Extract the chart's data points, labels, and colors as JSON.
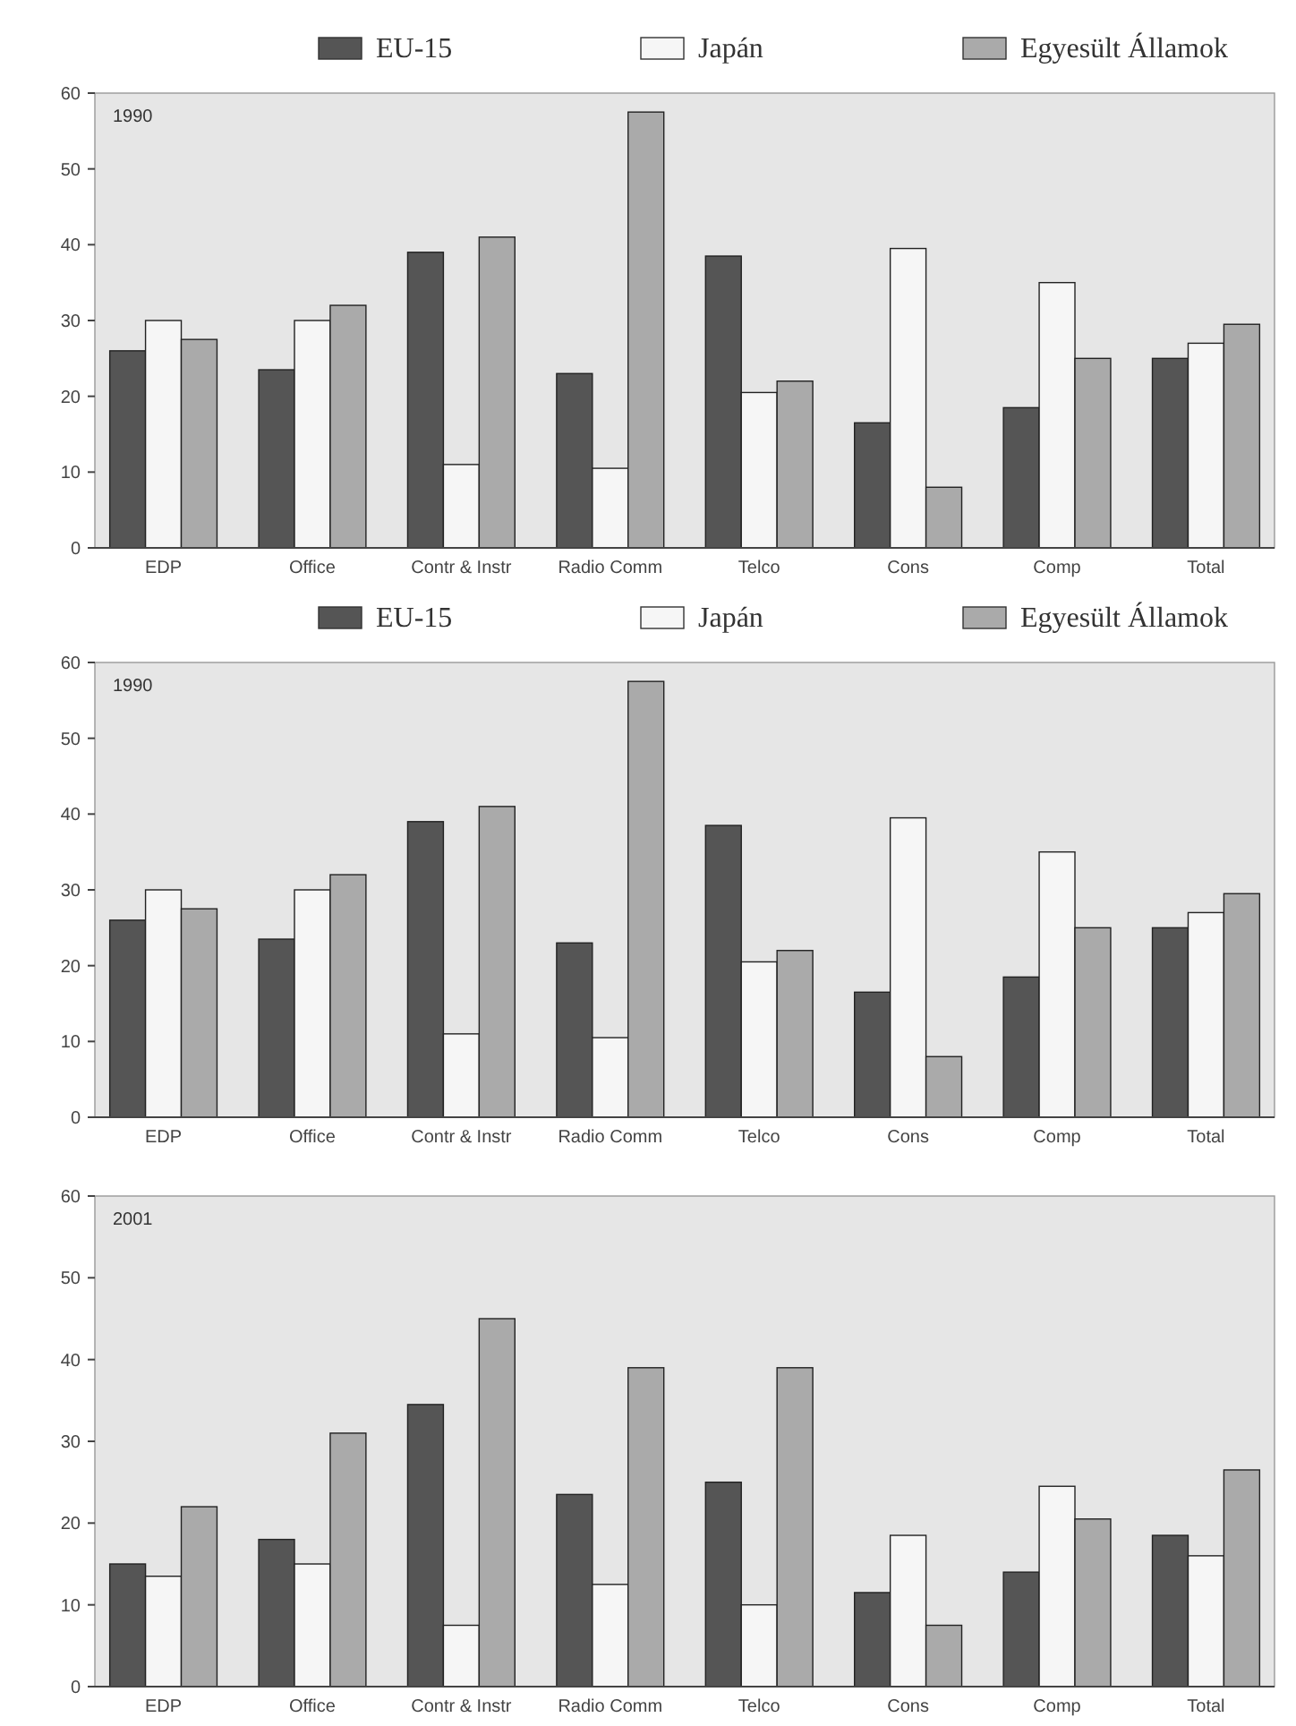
{
  "chart_data": [
    {
      "type": "bar",
      "title": "1990",
      "categories": [
        "EDP",
        "Office",
        "Contr & Instr",
        "Radio Comm",
        "Telco",
        "Cons",
        "Comp",
        "Total"
      ],
      "series": [
        {
          "name": "EU-15",
          "color": "#555555",
          "values": [
            26,
            23.5,
            39,
            23,
            38.5,
            16.5,
            18.5,
            25
          ]
        },
        {
          "name": "Japán",
          "color": "#f6f6f6",
          "values": [
            30,
            30,
            11,
            10.5,
            20.5,
            39.5,
            35,
            27
          ]
        },
        {
          "name": "Egyesült Államok",
          "color": "#aaaaaa",
          "values": [
            27.5,
            32,
            41,
            57.5,
            22,
            8,
            25,
            29.5
          ]
        }
      ],
      "ylim": [
        0,
        60
      ],
      "yticks": [
        0,
        10,
        20,
        30,
        40,
        50,
        60
      ],
      "legend": "top"
    },
    {
      "type": "bar",
      "title": "1990",
      "categories": [
        "EDP",
        "Office",
        "Contr & Instr",
        "Radio Comm",
        "Telco",
        "Cons",
        "Comp",
        "Total"
      ],
      "series": [
        {
          "name": "EU-15",
          "color": "#555555",
          "values": [
            26,
            23.5,
            39,
            23,
            38.5,
            16.5,
            18.5,
            25
          ]
        },
        {
          "name": "Japán",
          "color": "#f6f6f6",
          "values": [
            30,
            30,
            11,
            10.5,
            20.5,
            39.5,
            35,
            27
          ]
        },
        {
          "name": "Egyesült Államok",
          "color": "#aaaaaa",
          "values": [
            27.5,
            32,
            41,
            57.5,
            22,
            8,
            25,
            29.5
          ]
        }
      ],
      "ylim": [
        0,
        60
      ],
      "yticks": [
        0,
        10,
        20,
        30,
        40,
        50,
        60
      ],
      "legend": "top"
    },
    {
      "type": "bar",
      "title": "2001",
      "categories": [
        "EDP",
        "Office",
        "Contr & Instr",
        "Radio Comm",
        "Telco",
        "Cons",
        "Comp",
        "Total"
      ],
      "series": [
        {
          "color": "#555555",
          "values": [
            15,
            18,
            34.5,
            23.5,
            25,
            11.5,
            14,
            18.5
          ]
        },
        {
          "color": "#f6f6f6",
          "values": [
            13.5,
            15,
            7.5,
            12.5,
            10,
            18.5,
            24.5,
            16
          ]
        },
        {
          "color": "#aaaaaa",
          "values": [
            22,
            31,
            45,
            39,
            39,
            7.5,
            20.5,
            26.5
          ]
        }
      ],
      "ylim": [
        0,
        60
      ],
      "yticks": [
        0,
        10,
        20,
        30,
        40,
        50,
        60
      ]
    }
  ]
}
